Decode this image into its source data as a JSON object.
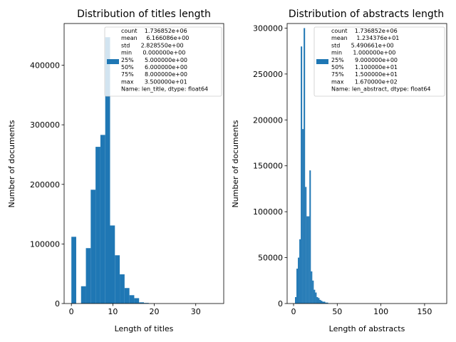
{
  "chart_data": [
    {
      "type": "bar",
      "title": "Distribution of titles length",
      "xlabel": "Length of titles",
      "ylabel": "Number of documents",
      "xlim": [
        -1.75,
        36.75
      ],
      "ylim": [
        0,
        470000
      ],
      "xticks": [
        0,
        10,
        20,
        30
      ],
      "yticks": [
        0,
        100000,
        200000,
        300000,
        400000
      ],
      "bin_width": 1.1667,
      "bins": [
        {
          "x0": 0.0,
          "value": 112000
        },
        {
          "x0": 1.1667,
          "value": 0
        },
        {
          "x0": 2.3333,
          "value": 29000
        },
        {
          "x0": 3.5,
          "value": 93000
        },
        {
          "x0": 4.6667,
          "value": 191000
        },
        {
          "x0": 5.8333,
          "value": 263000
        },
        {
          "x0": 7.0,
          "value": 283000
        },
        {
          "x0": 8.1667,
          "value": 447000
        },
        {
          "x0": 9.3333,
          "value": 131000
        },
        {
          "x0": 10.5,
          "value": 81000
        },
        {
          "x0": 11.6667,
          "value": 49000
        },
        {
          "x0": 12.8333,
          "value": 26000
        },
        {
          "x0": 14.0,
          "value": 14000
        },
        {
          "x0": 15.1667,
          "value": 9000
        },
        {
          "x0": 16.3333,
          "value": 2000
        },
        {
          "x0": 17.5,
          "value": 1000
        }
      ],
      "legend_position": "top-right",
      "legend_lines": [
        "count    1.736852e+06",
        "mean     6.166086e+00",
        "std      2.828550e+00",
        "min      0.000000e+00",
        "25%      5.000000e+00",
        "50%      6.000000e+00",
        "75%      8.000000e+00",
        "max      3.500000e+01",
        "Name: len_title, dtype: float64"
      ],
      "color": "#1f77b4"
    },
    {
      "type": "bar",
      "title": "Distribution of abstracts length",
      "xlabel": "Length of abstracts",
      "ylabel": "Number of documents",
      "xlim": [
        -7.35,
        175.35
      ],
      "ylim": [
        0,
        305000
      ],
      "xticks": [
        0,
        50,
        100,
        150
      ],
      "yticks": [
        0,
        50000,
        100000,
        150000,
        200000,
        250000,
        300000
      ],
      "bin_width": 1.65,
      "bins": [
        {
          "x0": 0.0,
          "value": 0
        },
        {
          "x0": 1.65,
          "value": 7000
        },
        {
          "x0": 3.3,
          "value": 38000
        },
        {
          "x0": 4.95,
          "value": 50000
        },
        {
          "x0": 6.6,
          "value": 70000
        },
        {
          "x0": 8.25,
          "value": 280000
        },
        {
          "x0": 9.9,
          "value": 190000
        },
        {
          "x0": 11.55,
          "value": 300000
        },
        {
          "x0": 13.2,
          "value": 127000
        },
        {
          "x0": 14.85,
          "value": 95000
        },
        {
          "x0": 16.5,
          "value": 95000
        },
        {
          "x0": 18.15,
          "value": 145000
        },
        {
          "x0": 19.8,
          "value": 35000
        },
        {
          "x0": 21.45,
          "value": 25000
        },
        {
          "x0": 23.1,
          "value": 15000
        },
        {
          "x0": 24.75,
          "value": 12000
        },
        {
          "x0": 26.4,
          "value": 7000
        },
        {
          "x0": 28.05,
          "value": 6000
        },
        {
          "x0": 29.7,
          "value": 4000
        },
        {
          "x0": 31.35,
          "value": 3000
        },
        {
          "x0": 33.0,
          "value": 2000
        },
        {
          "x0": 34.65,
          "value": 2000
        },
        {
          "x0": 36.3,
          "value": 1000
        },
        {
          "x0": 37.95,
          "value": 1000
        }
      ],
      "legend_position": "top-right",
      "legend_lines": [
        "count    1.736852e+06",
        "mean     1.234376e+01",
        "std      5.490661e+00",
        "min      1.000000e+00",
        "25%      9.000000e+00",
        "50%      1.100000e+01",
        "75%      1.500000e+01",
        "max      1.670000e+02",
        "Name: len_abstract, dtype: float64"
      ],
      "color": "#1f77b4"
    }
  ]
}
